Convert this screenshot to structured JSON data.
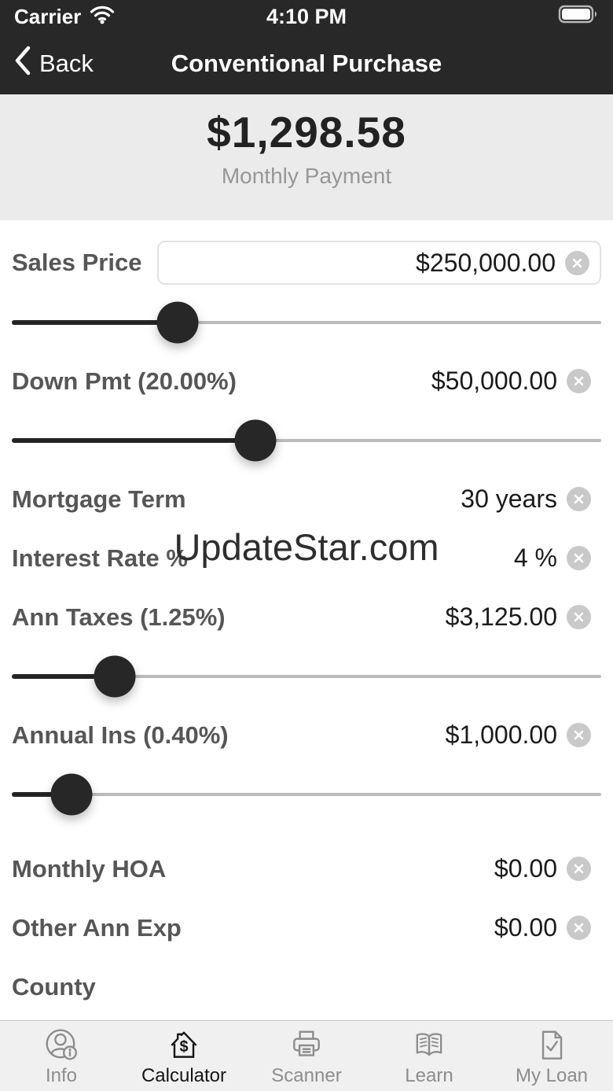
{
  "status_bar": {
    "carrier": "Carrier",
    "time": "4:10 PM",
    "battery_icon": "battery-full-icon",
    "wifi_icon": "wifi-icon"
  },
  "nav_bar": {
    "back_label": "Back",
    "title": "Conventional Purchase"
  },
  "summary": {
    "amount": "$1,298.58",
    "caption": "Monthly Payment"
  },
  "watermark": "UpdateStar.com",
  "fields": [
    {
      "name": "sales-price",
      "label": "Sales Price",
      "value": "$250,000.00",
      "input_box": true,
      "clearable": true,
      "slider_percent": 28.1
    },
    {
      "name": "down-payment",
      "label": "Down Pmt (20.00%)",
      "value": "$50,000.00",
      "input_box": false,
      "clearable": true,
      "slider_percent": 41.3
    },
    {
      "name": "mortgage-term",
      "label": "Mortgage Term",
      "value": "30 years",
      "input_box": false,
      "clearable": true
    },
    {
      "name": "interest-rate",
      "label": "Interest Rate %",
      "value": "4 %",
      "input_box": false,
      "clearable": true
    },
    {
      "name": "annual-taxes",
      "label": "Ann Taxes (1.25%)",
      "value": "$3,125.00",
      "input_box": false,
      "clearable": true,
      "slider_percent": 17.5
    },
    {
      "name": "annual-insurance",
      "label": "Annual Ins (0.40%)",
      "value": "$1,000.00",
      "input_box": false,
      "clearable": true,
      "slider_percent": 10.1
    },
    {
      "name": "monthly-hoa",
      "label": "Monthly HOA",
      "value": "$0.00",
      "input_box": false,
      "clearable": true,
      "extra_gap": true
    },
    {
      "name": "other-annual-exp",
      "label": "Other Ann Exp",
      "value": "$0.00",
      "input_box": false,
      "clearable": true
    },
    {
      "name": "county",
      "label": "County",
      "value": "",
      "input_box": false,
      "clearable": false
    }
  ],
  "tab_bar": {
    "items": [
      {
        "label": "Info",
        "icon": "person-info-icon",
        "active": false
      },
      {
        "label": "Calculator",
        "icon": "house-dollar-icon",
        "active": true
      },
      {
        "label": "Scanner",
        "icon": "printer-icon",
        "active": false
      },
      {
        "label": "Learn",
        "icon": "open-book-icon",
        "active": false
      },
      {
        "label": "My Loan",
        "icon": "document-check-icon",
        "active": false
      }
    ]
  },
  "colors": {
    "chrome_bg": "#282828",
    "summary_bg": "#ebebeb",
    "label_gray": "#565656",
    "value_dark": "#1b1b1b",
    "slider_fill": "#242424",
    "slider_track": "#bbbbbb",
    "clear_circle": "#c9c9c9",
    "tab_inactive": "#8d8d8d",
    "tab_active": "#151515",
    "tabbar_bg": "#f0f0f0"
  }
}
